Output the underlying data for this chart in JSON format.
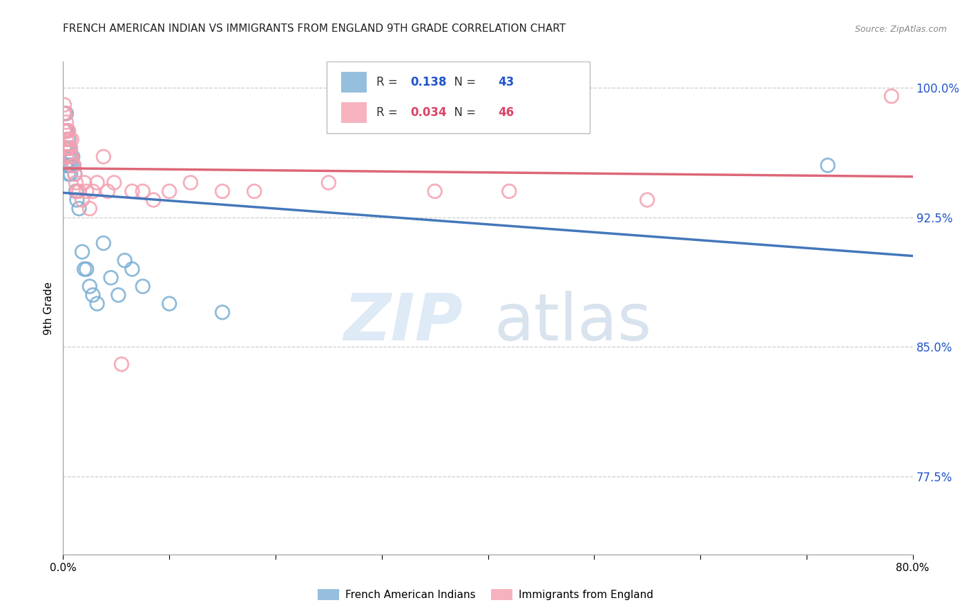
{
  "title": "FRENCH AMERICAN INDIAN VS IMMIGRANTS FROM ENGLAND 9TH GRADE CORRELATION CHART",
  "source": "Source: ZipAtlas.com",
  "ylabel": "9th Grade",
  "ytick_labels": [
    "100.0%",
    "92.5%",
    "85.0%",
    "77.5%"
  ],
  "ytick_values": [
    1.0,
    0.925,
    0.85,
    0.775
  ],
  "legend_label_blue": "French American Indians",
  "legend_label_pink": "Immigrants from England",
  "blue_color": "#7bafd4",
  "pink_color": "#f4a0b0",
  "blue_line_color": "#4477bb",
  "pink_line_color": "#dd6677",
  "xmin": 0.0,
  "xmax": 0.8,
  "ymin": 0.73,
  "ymax": 1.015,
  "blue_R": 0.138,
  "blue_N": 43,
  "pink_R": 0.034,
  "pink_N": 46,
  "blue_x": [
    0.001,
    0.001,
    0.001,
    0.002,
    0.002,
    0.002,
    0.002,
    0.003,
    0.003,
    0.003,
    0.003,
    0.004,
    0.004,
    0.004,
    0.005,
    0.005,
    0.005,
    0.006,
    0.006,
    0.007,
    0.007,
    0.008,
    0.009,
    0.01,
    0.011,
    0.012,
    0.013,
    0.015,
    0.018,
    0.02,
    0.022,
    0.025,
    0.028,
    0.032,
    0.038,
    0.045,
    0.052,
    0.058,
    0.065,
    0.075,
    0.1,
    0.15,
    0.72
  ],
  "blue_y": [
    0.985,
    0.975,
    0.965,
    0.985,
    0.975,
    0.965,
    0.955,
    0.985,
    0.975,
    0.965,
    0.955,
    0.975,
    0.965,
    0.955,
    0.97,
    0.96,
    0.95,
    0.965,
    0.955,
    0.96,
    0.95,
    0.955,
    0.96,
    0.955,
    0.95,
    0.94,
    0.935,
    0.93,
    0.905,
    0.895,
    0.895,
    0.885,
    0.88,
    0.875,
    0.91,
    0.89,
    0.88,
    0.9,
    0.895,
    0.885,
    0.875,
    0.87,
    0.955
  ],
  "pink_x": [
    0.001,
    0.001,
    0.001,
    0.002,
    0.002,
    0.002,
    0.003,
    0.003,
    0.003,
    0.004,
    0.004,
    0.005,
    0.005,
    0.006,
    0.006,
    0.007,
    0.008,
    0.008,
    0.009,
    0.01,
    0.011,
    0.012,
    0.013,
    0.015,
    0.018,
    0.02,
    0.022,
    0.025,
    0.028,
    0.032,
    0.038,
    0.042,
    0.048,
    0.055,
    0.065,
    0.075,
    0.085,
    0.1,
    0.12,
    0.15,
    0.18,
    0.25,
    0.35,
    0.42,
    0.55,
    0.78
  ],
  "pink_y": [
    0.99,
    0.985,
    0.975,
    0.985,
    0.975,
    0.965,
    0.98,
    0.97,
    0.96,
    0.975,
    0.965,
    0.975,
    0.965,
    0.97,
    0.96,
    0.965,
    0.97,
    0.96,
    0.955,
    0.955,
    0.95,
    0.945,
    0.94,
    0.94,
    0.935,
    0.945,
    0.94,
    0.93,
    0.94,
    0.945,
    0.96,
    0.94,
    0.945,
    0.84,
    0.94,
    0.94,
    0.935,
    0.94,
    0.945,
    0.94,
    0.94,
    0.945,
    0.94,
    0.94,
    0.935,
    0.995
  ]
}
